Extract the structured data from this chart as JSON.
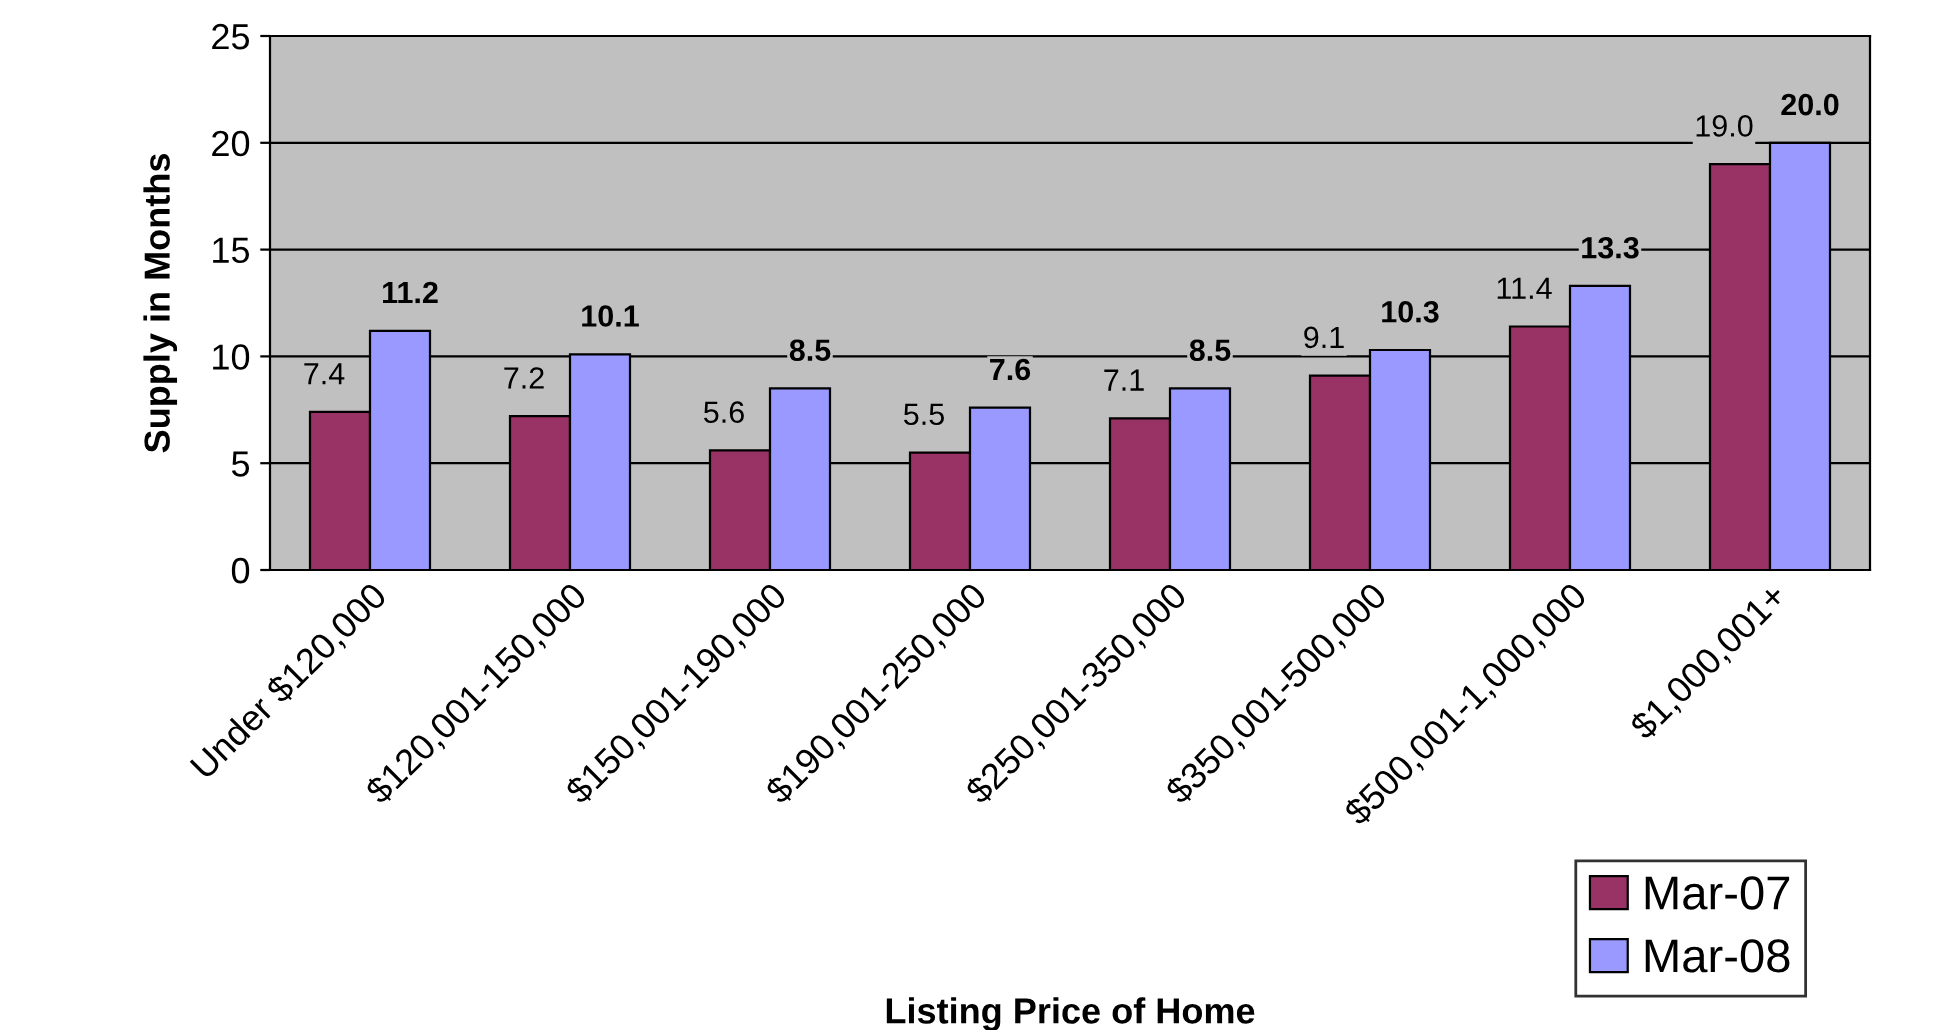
{
  "chart_data": {
    "type": "bar",
    "xlabel": "Listing Price of Home",
    "ylabel": "Supply in Months",
    "categories": [
      "Under $120,000",
      "$120,001-150,000",
      "$150,001-190,000",
      "$190,001-250,000",
      "$250,001-350,000",
      "$350,001-500,000",
      "$500,001-1,000,000",
      "$1,000,001+"
    ],
    "series": [
      {
        "name": "Mar-07",
        "color": "#993366",
        "values": [
          7.4,
          7.2,
          5.6,
          5.5,
          7.1,
          9.1,
          11.4,
          19.0
        ],
        "value_labels": [
          "7.4",
          "7.2",
          "5.6",
          "5.5",
          "7.1",
          "9.1",
          "11.4",
          "19.0"
        ]
      },
      {
        "name": "Mar-08",
        "color": "#9999ff",
        "values": [
          11.2,
          10.1,
          8.5,
          7.6,
          8.5,
          10.3,
          13.3,
          20.0
        ],
        "value_labels": [
          "11.2",
          "10.1",
          "8.5",
          "7.6",
          "8.5",
          "10.3",
          "13.3",
          "20.0"
        ]
      }
    ],
    "ylim": [
      0,
      25
    ],
    "yticks": [
      0,
      5,
      10,
      15,
      20,
      25
    ],
    "grid": "y",
    "legend": "bottom right"
  }
}
